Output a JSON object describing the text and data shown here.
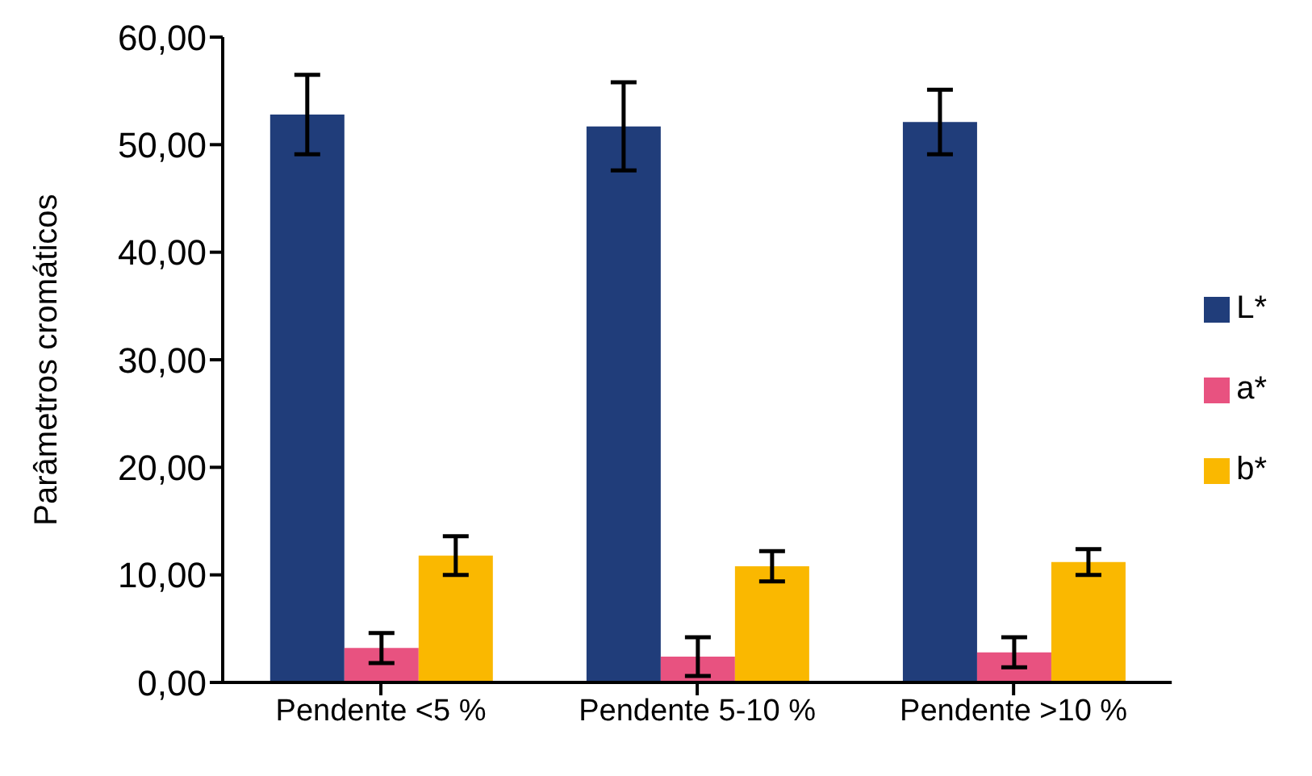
{
  "chart_data": {
    "type": "bar",
    "ylabel": "Parâmetros cromáticos",
    "categories": [
      "Pendente <5 %",
      "Pendente 5-10 %",
      "Pendente >10 %"
    ],
    "series": [
      {
        "name": "L*",
        "color": "#203d7a",
        "values": [
          52.8,
          51.7,
          52.1
        ],
        "errors": [
          3.7,
          4.1,
          3.0
        ]
      },
      {
        "name": "a*",
        "color": "#e85280",
        "values": [
          3.2,
          2.4,
          2.8
        ],
        "errors": [
          1.4,
          1.8,
          1.4
        ]
      },
      {
        "name": "b*",
        "color": "#fab800",
        "values": [
          11.8,
          10.8,
          11.2
        ],
        "errors": [
          1.8,
          1.4,
          1.2
        ]
      }
    ],
    "ylim": [
      0,
      60
    ],
    "yticks": [
      {
        "value": 0,
        "label": "0,00"
      },
      {
        "value": 10,
        "label": "10,00"
      },
      {
        "value": 20,
        "label": "20,00"
      },
      {
        "value": 30,
        "label": "30,00"
      },
      {
        "value": 40,
        "label": "40,00"
      },
      {
        "value": 50,
        "label": "50,00"
      },
      {
        "value": 60,
        "label": "60,00"
      }
    ],
    "grid": false,
    "legend": "right"
  }
}
